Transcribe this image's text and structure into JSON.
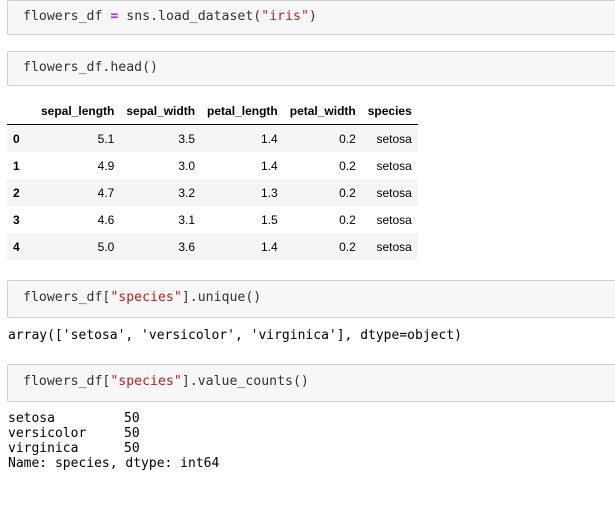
{
  "cells": {
    "load": {
      "var": "flowers_df",
      "op": "=",
      "call": "sns.load_dataset(",
      "arg": "\"iris\"",
      "close": ")"
    },
    "head": {
      "code": "flowers_df.head()"
    },
    "unique": {
      "pre": "flowers_df[",
      "arg": "\"species\"",
      "post": "].unique()",
      "output": "array(['setosa', 'versicolor', 'virginica'], dtype=object)"
    },
    "counts": {
      "pre": "flowers_df[",
      "arg": "\"species\"",
      "post": "].value_counts()",
      "output_rows": [
        {
          "label": "setosa",
          "value": "50"
        },
        {
          "label": "versicolor",
          "value": "50"
        },
        {
          "label": "virginica",
          "value": "50"
        }
      ],
      "output_footer": "Name: species, dtype: int64"
    }
  },
  "dataframe": {
    "columns": [
      "",
      "sepal_length",
      "sepal_width",
      "petal_length",
      "petal_width",
      "species"
    ],
    "rows": [
      {
        "index": "0",
        "sepal_length": "5.1",
        "sepal_width": "3.5",
        "petal_length": "1.4",
        "petal_width": "0.2",
        "species": "setosa"
      },
      {
        "index": "1",
        "sepal_length": "4.9",
        "sepal_width": "3.0",
        "petal_length": "1.4",
        "petal_width": "0.2",
        "species": "setosa"
      },
      {
        "index": "2",
        "sepal_length": "4.7",
        "sepal_width": "3.2",
        "petal_length": "1.3",
        "petal_width": "0.2",
        "species": "setosa"
      },
      {
        "index": "3",
        "sepal_length": "4.6",
        "sepal_width": "3.1",
        "petal_length": "1.5",
        "petal_width": "0.2",
        "species": "setosa"
      },
      {
        "index": "4",
        "sepal_length": "5.0",
        "sepal_width": "3.6",
        "petal_length": "1.4",
        "petal_width": "0.2",
        "species": "setosa"
      }
    ]
  },
  "colors": {
    "keyword": "#aa22ff",
    "string": "#ba2121",
    "cell_bg": "#f7f7f7",
    "cell_border": "#cfcfcf"
  }
}
